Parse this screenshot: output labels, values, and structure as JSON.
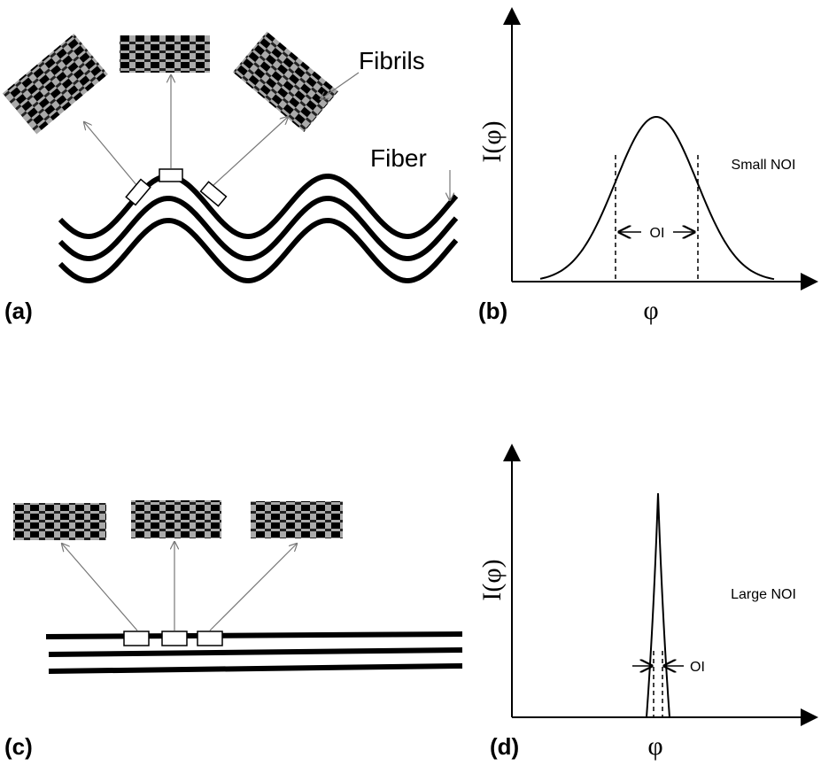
{
  "panels": [
    {
      "label": "(a)",
      "fibrils_label": "Fibrils",
      "fiber_label": "Fiber"
    },
    {
      "label": "(b)",
      "y_label": "I(φ)",
      "x_label": "φ",
      "interval_label": "OI",
      "regime_label": "Small NOI"
    },
    {
      "label": "(c)"
    },
    {
      "label": "(d)",
      "y_label": "I(φ)",
      "x_label": "φ",
      "interval_label": "OI",
      "regime_label": "Large NOI"
    }
  ]
}
